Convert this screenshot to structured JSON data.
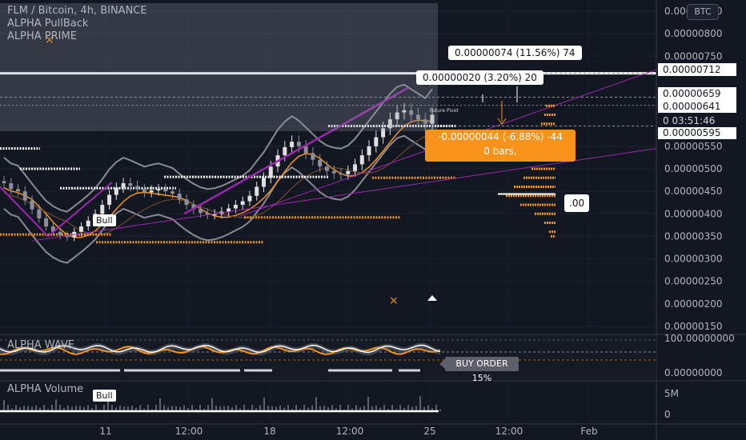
{
  "header": {
    "symbol_line": "FLM / Bitcoin, 4h, BINANCE",
    "indicator_1": "ALPHA PullBack",
    "indicator_2": "ALPHA PRIME",
    "currency_button": "BTC"
  },
  "annotations": {
    "measure_up": "0.00000074 (11.56%) 74",
    "measure_mid": "0.00000020 (3.20%) 20",
    "measure_down_1": "-0.00000044 (-6.88%) -44",
    "measure_down_2": "0 bars,",
    "bull_tag_main": "Bull",
    "bull_tag_volume": "Bull",
    "dot_tag": ".00",
    "future_pivot": "Future Pivot",
    "countdown": "03:51:46",
    "buy_order": "BUY ORDER 15%"
  },
  "colors": {
    "background": "#131722",
    "up_candle": "#e0e0e0",
    "down_candle": "#8a8f99",
    "orange": "#f7931a",
    "purple": "#9c27b0",
    "band": "#b0b3b8",
    "white_level": "#ffffff"
  },
  "chart_data": [
    {
      "type": "line",
      "title": "FLM / Bitcoin, 4h, BINANCE",
      "y_axis_labels": [
        "0.00000850",
        "0.00000800",
        "0.00000750",
        "0.00000712",
        "0.00000659",
        "0.00000641",
        "0.00000595",
        "0.00000550",
        "0.00000500",
        "0.00000450",
        "0.00000400",
        "0.00000350",
        "0.00000300",
        "0.00000250",
        "0.00000200",
        "0.00000150"
      ],
      "x_axis_labels": [
        "11",
        "12:00",
        "18",
        "12:00",
        "25",
        "12:00",
        "Feb"
      ],
      "ylim": [
        1.35e-06,
        8.7e-06
      ],
      "price_tags": [
        "0.00000712",
        "0.00000659",
        "0.00000641",
        "0.00000595"
      ],
      "close_series": [
        4.68e-06,
        4.55e-06,
        4.5e-06,
        4.3e-06,
        4.1e-06,
        3.9e-06,
        3.72e-06,
        3.6e-06,
        3.52e-06,
        3.48e-06,
        3.6e-06,
        3.72e-06,
        3.85e-06,
        4e-06,
        4.2e-06,
        4.42e-06,
        4.58e-06,
        4.68e-06,
        4.62e-06,
        4.55e-06,
        4.48e-06,
        4.52e-06,
        4.55e-06,
        4.5e-06,
        4.45e-06,
        4.32e-06,
        4.2e-06,
        4.1e-06,
        4.02e-06,
        3.98e-06,
        4e-06,
        4.05e-06,
        4.12e-06,
        4.2e-06,
        4.28e-06,
        4.4e-06,
        4.6e-06,
        4.8e-06,
        5.05e-06,
        5.3e-06,
        5.48e-06,
        5.6e-06,
        5.5e-06,
        5.35e-06,
        5.2e-06,
        5.05e-06,
        4.95e-06,
        4.9e-06,
        4.88e-06,
        4.95e-06,
        5.1e-06,
        5.3e-06,
        5.5e-06,
        5.7e-06,
        5.9e-06,
        6.1e-06,
        6.25e-06,
        6.3e-06,
        6.2e-06,
        6.1e-06,
        6e-06,
        6.2e-06
      ],
      "key_levels": [
        {
          "name": "white",
          "value": 7.12e-06
        },
        {
          "name": "white",
          "value": 6.41e-06
        },
        {
          "name": "white",
          "value": 5.95e-06
        },
        {
          "name": "white",
          "value": 5.45e-06
        },
        {
          "name": "white",
          "value": 5e-06
        },
        {
          "name": "white",
          "value": 4.82e-06
        },
        {
          "name": "white",
          "value": 4.57e-06
        },
        {
          "name": "orange",
          "value": 4.8e-06
        },
        {
          "name": "orange",
          "value": 3.92e-06
        },
        {
          "name": "orange",
          "value": 3.54e-06
        },
        {
          "name": "orange",
          "value": 3.37e-06
        }
      ]
    },
    {
      "type": "line",
      "title": "ALPHA WAVE",
      "y_axis_labels": [
        "100.00000000",
        "0.00000000"
      ],
      "ylim": [
        0,
        100
      ]
    },
    {
      "type": "bar",
      "title": "ALPHA Volume",
      "y_axis_labels": [
        "5M",
        "0"
      ]
    }
  ]
}
